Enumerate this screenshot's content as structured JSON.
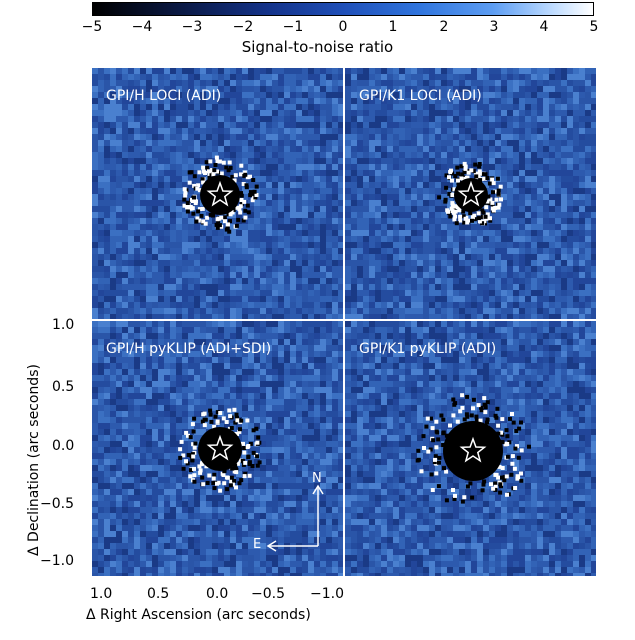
{
  "colorbar": {
    "ticks": [
      "−5",
      "−4",
      "−3",
      "−2",
      "−1",
      "0",
      "1",
      "2",
      "3",
      "4",
      "5"
    ],
    "title": "Signal-to-noise ratio",
    "colors": [
      "#000000",
      "#14338a",
      "#2f74dd",
      "#ffffff"
    ]
  },
  "panels": [
    {
      "label": "GPI/H LOCI (ADI)"
    },
    {
      "label": "GPI/K1 LOCI (ADI)"
    },
    {
      "label": "GPI/H pyKLIP (ADI+SDI)"
    },
    {
      "label": "GPI/K1 pyKLIP (ADI)"
    }
  ],
  "compass": {
    "north": "N",
    "east": "E"
  },
  "yaxis": {
    "label": "Δ Declination (arc seconds)",
    "ticks": [
      "1.0",
      "0.5",
      "0.0",
      "−0.5",
      "−1.0"
    ]
  },
  "xaxis": {
    "label": "Δ Right Ascension (arc seconds)",
    "ticks": [
      "1.0",
      "0.5",
      "0.0",
      "−0.5",
      "−1.0"
    ]
  },
  "marker": {
    "icon": "star-icon"
  }
}
